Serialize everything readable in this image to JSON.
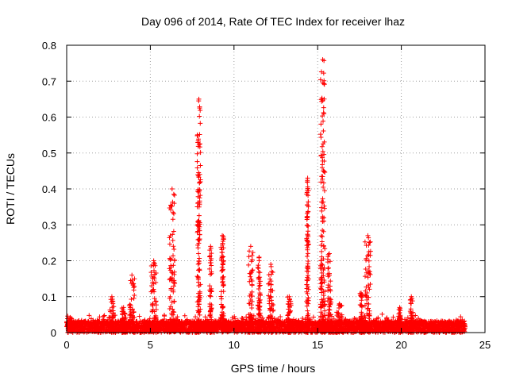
{
  "chart_data": {
    "type": "scatter",
    "title": "Day 096 of 2014, Rate Of TEC Index for receiver lhaz",
    "xlabel": "GPS time / hours",
    "ylabel": "ROTI / TECUs",
    "xlim": [
      0,
      25
    ],
    "ylim": [
      0,
      0.8
    ],
    "xticks": [
      "0",
      "5",
      "10",
      "15",
      "20",
      "25"
    ],
    "yticks": [
      "0",
      "0.1",
      "0.2",
      "0.3",
      "0.4",
      "0.5",
      "0.6",
      "0.7",
      "0.8"
    ],
    "grid": true,
    "marker": "+",
    "color": "#ff0000",
    "baseline": {
      "x_start": 0,
      "x_end": 23.8,
      "typical_roti": 0.025
    },
    "bursts": [
      {
        "x": 0.2,
        "peak": 0.04
      },
      {
        "x": 2.7,
        "peak": 0.1
      },
      {
        "x": 3.4,
        "peak": 0.07
      },
      {
        "x": 3.9,
        "peak": 0.16
      },
      {
        "x": 5.2,
        "peak": 0.2
      },
      {
        "x": 6.3,
        "peak": 0.4
      },
      {
        "x": 7.9,
        "peak": 0.65
      },
      {
        "x": 8.6,
        "peak": 0.24
      },
      {
        "x": 9.3,
        "peak": 0.27
      },
      {
        "x": 11.0,
        "peak": 0.24
      },
      {
        "x": 11.5,
        "peak": 0.21
      },
      {
        "x": 12.2,
        "peak": 0.19
      },
      {
        "x": 13.3,
        "peak": 0.1
      },
      {
        "x": 14.4,
        "peak": 0.43
      },
      {
        "x": 15.3,
        "peak": 0.76
      },
      {
        "x": 15.7,
        "peak": 0.22
      },
      {
        "x": 16.3,
        "peak": 0.08
      },
      {
        "x": 17.6,
        "peak": 0.11
      },
      {
        "x": 18.0,
        "peak": 0.27
      },
      {
        "x": 19.9,
        "peak": 0.07
      },
      {
        "x": 20.6,
        "peak": 0.1
      }
    ]
  }
}
